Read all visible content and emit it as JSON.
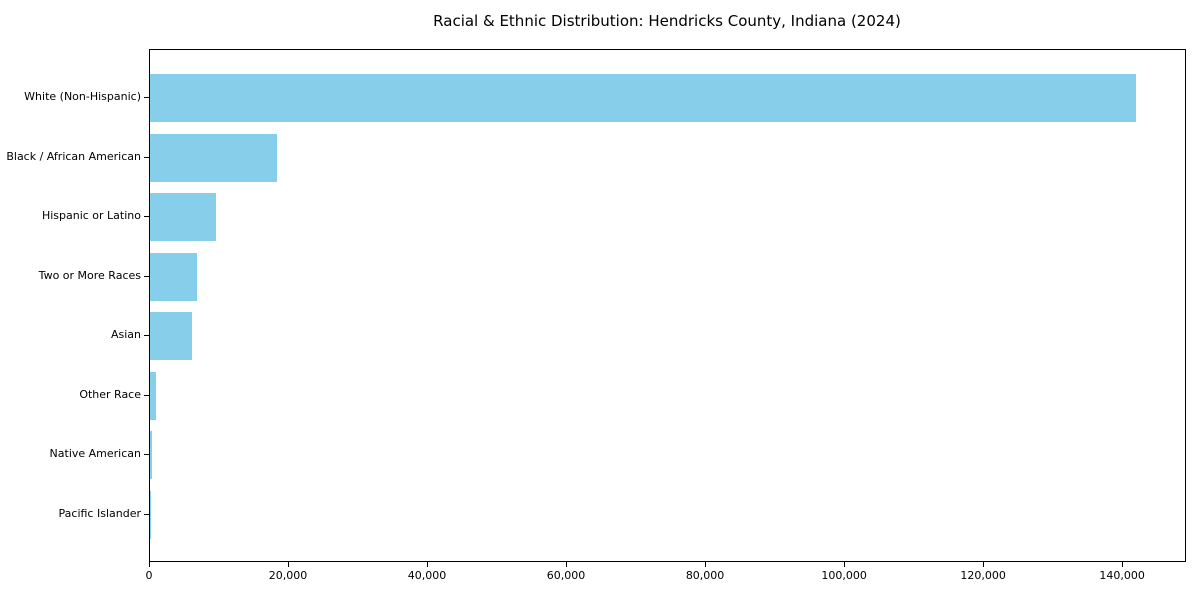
{
  "chart_data": {
    "type": "bar",
    "orientation": "horizontal",
    "title": "Racial & Ethnic Distribution: Hendricks County, Indiana (2024)",
    "xlabel": "",
    "ylabel": "",
    "categories": [
      "White (Non-Hispanic)",
      "Black / African American",
      "Hispanic or Latino",
      "Two or More Races",
      "Asian",
      "Other Race",
      "Native American",
      "Pacific Islander"
    ],
    "values": [
      141800,
      18200,
      9500,
      6750,
      6000,
      800,
      300,
      100
    ],
    "xlim": [
      0,
      148900
    ],
    "x_ticks": [
      0,
      20000,
      40000,
      60000,
      80000,
      100000,
      120000,
      140000
    ],
    "x_tick_labels": [
      "0",
      "20,000",
      "40,000",
      "60,000",
      "80,000",
      "100,000",
      "120,000",
      "140,000"
    ],
    "bar_color": "#87CEEB",
    "background_color": "#ffffff",
    "text_color": "#000000",
    "spine_color": "#000000",
    "grid": false,
    "legend": "none"
  }
}
